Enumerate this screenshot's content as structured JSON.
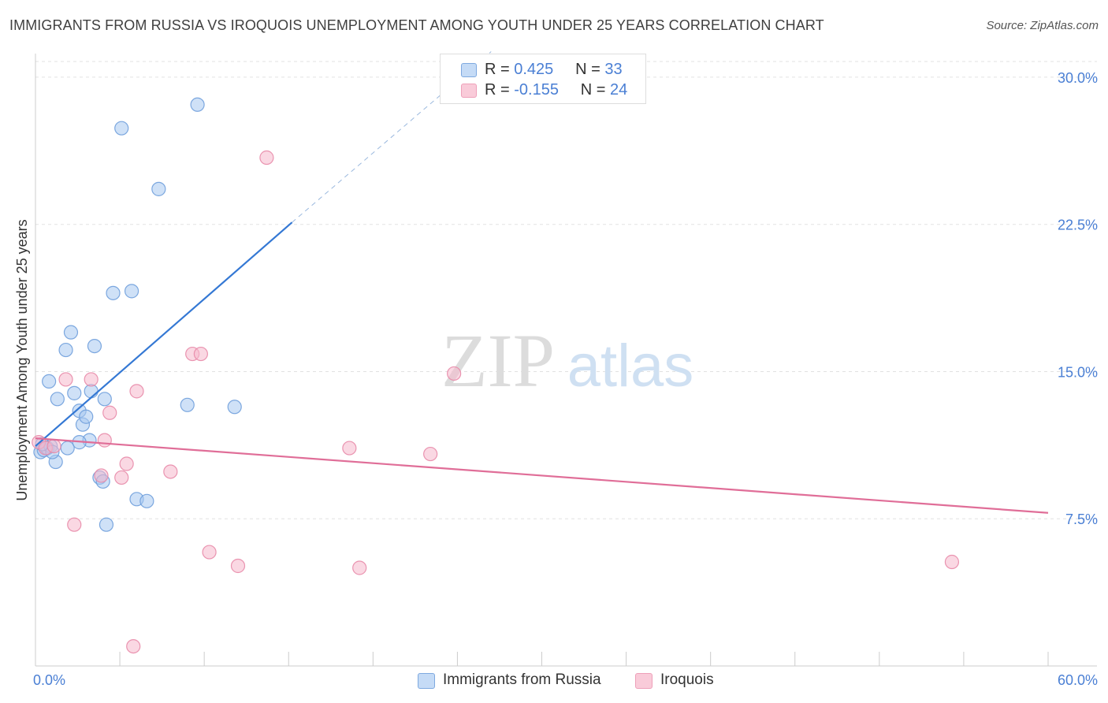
{
  "chart_data": {
    "type": "scatter",
    "title": "IMMIGRANTS FROM RUSSIA VS IROQUOIS UNEMPLOYMENT AMONG YOUTH UNDER 25 YEARS CORRELATION CHART",
    "source": "Source: ZipAtlas.com",
    "xlabel": "",
    "ylabel": "Unemployment Among Youth under 25 years",
    "xlim": [
      0,
      60
    ],
    "ylim": [
      0,
      30.8
    ],
    "x_tick_labels": [
      "0.0%",
      "60.0%"
    ],
    "y_ticks": [
      7.5,
      15.0,
      22.5,
      30.0
    ],
    "y_tick_labels": [
      "7.5%",
      "15.0%",
      "22.5%",
      "30.0%"
    ],
    "grid": true,
    "watermark": "ZIPatlas",
    "legend": [
      {
        "r_label": "R =",
        "r_value": "0.425",
        "n_label": "N =",
        "n_value": "33"
      },
      {
        "r_label": "R =",
        "r_value": "-0.155",
        "n_label": "N =",
        "n_value": "24"
      }
    ],
    "series": [
      {
        "name": "Immigrants from Russia",
        "color": "#a8c8f0",
        "stroke": "#6f9fdc",
        "trend_color": "#3478d4",
        "trend": {
          "x0": 0,
          "y0": 11.2,
          "x1": 15.2,
          "y1": 22.6,
          "dash_to_x": 27,
          "dash_to_y": 31.3
        },
        "points": [
          [
            0.3,
            10.9
          ],
          [
            0.5,
            11.0
          ],
          [
            0.7,
            11.1
          ],
          [
            0.9,
            11.2
          ],
          [
            0.4,
            11.3
          ],
          [
            1.2,
            10.4
          ],
          [
            0.8,
            14.5
          ],
          [
            1.3,
            13.6
          ],
          [
            1.8,
            16.1
          ],
          [
            2.1,
            17.0
          ],
          [
            2.3,
            13.9
          ],
          [
            2.6,
            13.0
          ],
          [
            2.8,
            12.3
          ],
          [
            3.0,
            12.7
          ],
          [
            3.2,
            11.5
          ],
          [
            3.5,
            16.3
          ],
          [
            3.8,
            9.6
          ],
          [
            4.1,
            13.6
          ],
          [
            4.6,
            19.0
          ],
          [
            5.1,
            27.4
          ],
          [
            5.7,
            19.1
          ],
          [
            6.0,
            8.5
          ],
          [
            7.3,
            24.3
          ],
          [
            9.0,
            13.3
          ],
          [
            9.6,
            28.6
          ],
          [
            11.8,
            13.2
          ],
          [
            4.2,
            7.2
          ],
          [
            6.6,
            8.4
          ],
          [
            3.3,
            14.0
          ],
          [
            1.9,
            11.1
          ],
          [
            2.6,
            11.4
          ],
          [
            1.0,
            10.9
          ],
          [
            4.0,
            9.4
          ]
        ]
      },
      {
        "name": "Iroquois",
        "color": "#f6b8cc",
        "stroke": "#e88aa8",
        "trend_color": "#e06e98",
        "trend": {
          "x0": 0,
          "y0": 11.6,
          "x1": 60,
          "y1": 7.8
        },
        "points": [
          [
            0.2,
            11.4
          ],
          [
            0.6,
            11.1
          ],
          [
            1.1,
            11.2
          ],
          [
            1.8,
            14.6
          ],
          [
            2.3,
            7.2
          ],
          [
            3.3,
            14.6
          ],
          [
            3.9,
            9.7
          ],
          [
            4.1,
            11.5
          ],
          [
            4.4,
            12.9
          ],
          [
            5.1,
            9.6
          ],
          [
            5.4,
            10.3
          ],
          [
            6.0,
            14.0
          ],
          [
            8.0,
            9.9
          ],
          [
            9.3,
            15.9
          ],
          [
            9.8,
            15.9
          ],
          [
            10.3,
            5.8
          ],
          [
            12.0,
            5.1
          ],
          [
            13.7,
            25.9
          ],
          [
            18.6,
            11.1
          ],
          [
            19.2,
            5.0
          ],
          [
            23.4,
            10.8
          ],
          [
            24.8,
            14.9
          ],
          [
            5.8,
            1.0
          ],
          [
            54.3,
            5.3
          ]
        ]
      }
    ]
  }
}
